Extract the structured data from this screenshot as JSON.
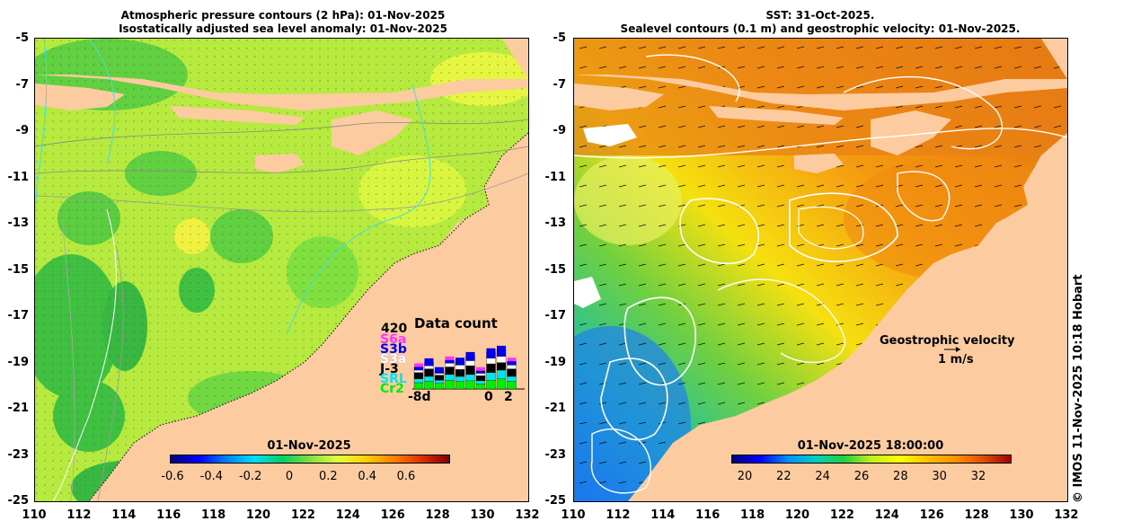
{
  "left_panel": {
    "title_line1": "Atmospheric pressure contours (2 hPa): 01-Nov-2025",
    "title_line2": "Isostatically adjusted sea level anomaly: 01-Nov-2025",
    "colorbar_title": "01-Nov-2025",
    "colorbar_ticks": [
      "-0.6",
      "-0.4",
      "-0.2",
      "0",
      "0.2",
      "0.4",
      "0.6"
    ],
    "data_count": {
      "title": "Data count",
      "max_label": "420",
      "satellites": [
        {
          "label": "S6a",
          "color": "#ff33ff"
        },
        {
          "label": "S3b",
          "color": "#0000ee"
        },
        {
          "label": "S3a",
          "color": "#ffffff"
        },
        {
          "label": "J-3",
          "color": "#000000"
        },
        {
          "label": "SRL",
          "color": "#00e5ee"
        },
        {
          "label": "Cr2",
          "color": "#00ee00"
        }
      ],
      "axis_left": "-8d",
      "axis_zero": "0",
      "axis_right": "2"
    }
  },
  "right_panel": {
    "title_line1": "SST: 31-Oct-2025.",
    "title_line2": "Sealevel contours (0.1 m) and geostrophic velocity: 01-Nov-2025.",
    "colorbar_title": "01-Nov-2025 18:00:00",
    "colorbar_ticks": [
      "20",
      "22",
      "24",
      "26",
      "28",
      "30",
      "32"
    ],
    "velocity_legend_line1": "Geostrophic velocity",
    "velocity_legend_line2": "1 m/s"
  },
  "axes": {
    "y_ticks": [
      "-5",
      "-7",
      "-9",
      "-11",
      "-13",
      "-15",
      "-17",
      "-19",
      "-21",
      "-23",
      "-25"
    ],
    "x_ticks": [
      "110",
      "112",
      "114",
      "116",
      "118",
      "120",
      "122",
      "124",
      "126",
      "128",
      "130",
      "132"
    ]
  },
  "credit": "© IMOS 11-Nov-2025 10:18 Hobart",
  "colors": {
    "land": "#fdcba0",
    "sla_scale": [
      "#00007f",
      "#0000ff",
      "#0080ff",
      "#00e0ff",
      "#00d060",
      "#80e040",
      "#e0ff40",
      "#ffd000",
      "#ff8000",
      "#e03000",
      "#800000"
    ],
    "sst_scale": [
      "#00007f",
      "#0000ff",
      "#0090ff",
      "#00d0c0",
      "#20d040",
      "#c0f020",
      "#ffff00",
      "#ffc000",
      "#ff9000",
      "#e05000",
      "#a00000"
    ]
  }
}
